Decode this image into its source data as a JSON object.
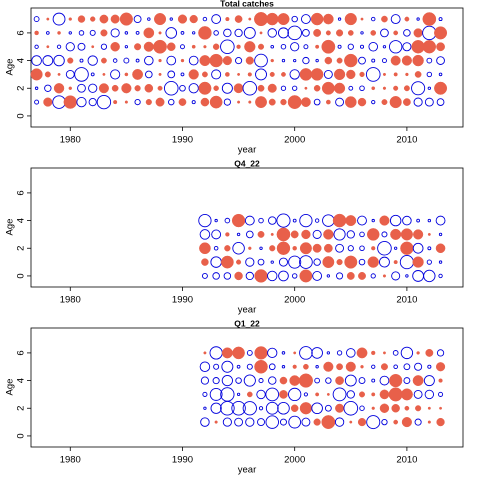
{
  "colors": {
    "positive": "#e8604a",
    "negative": "#0000dd",
    "frame": "#000000"
  },
  "chart_data": [
    {
      "type": "scatter",
      "subtype": "bubble-residuals",
      "title": "Total catches",
      "xlabel": "year",
      "ylabel": "Age",
      "xlim": [
        1976.5,
        2015
      ],
      "ylim": [
        -0.8,
        7.8
      ],
      "xticks": [
        1980,
        1990,
        2000,
        2010
      ],
      "yticks": [
        0,
        2,
        4,
        6
      ],
      "x_start": 1977,
      "x_end": 2013,
      "ages": [
        1,
        2,
        3,
        4,
        5,
        6,
        7
      ],
      "pattern_seed": 11
    },
    {
      "type": "scatter",
      "subtype": "bubble-residuals",
      "title": "Q4_22",
      "xlabel": "year",
      "ylabel": "Age",
      "xlim": [
        1976.5,
        2015
      ],
      "ylim": [
        -0.8,
        7.8
      ],
      "xticks": [
        1980,
        1990,
        2000,
        2010
      ],
      "yticks": [
        0,
        2,
        4,
        6
      ],
      "x_start": 1992,
      "x_end": 2013,
      "ages": [
        0,
        1,
        2,
        3,
        4
      ],
      "pattern_seed": 23
    },
    {
      "type": "scatter",
      "subtype": "bubble-residuals",
      "title": "Q1_22",
      "xlabel": "year",
      "ylabel": "Age",
      "xlim": [
        1976.5,
        2015
      ],
      "ylim": [
        -0.8,
        7.8
      ],
      "xticks": [
        1980,
        1990,
        2000,
        2010
      ],
      "yticks": [
        0,
        2,
        4,
        6
      ],
      "x_start": 1992,
      "x_end": 2013,
      "ages": [
        1,
        2,
        3,
        4,
        5,
        6
      ],
      "pattern_seed": 37
    }
  ]
}
